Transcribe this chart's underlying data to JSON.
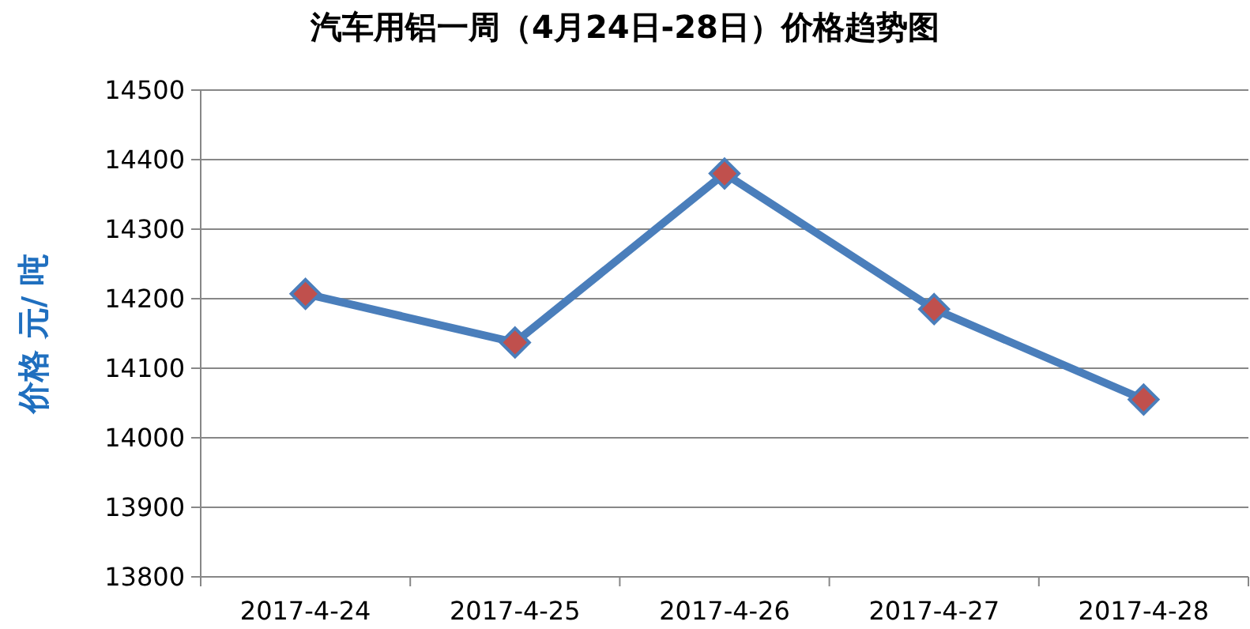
{
  "chart_data": {
    "type": "line",
    "title": "汽车用铝一周（4月24日-28日）价格趋势图",
    "ylabel": "价格 元/ 吨",
    "categories": [
      "2017-4-24",
      "2017-4-25",
      "2017-4-26",
      "2017-4-27",
      "2017-4-28"
    ],
    "series": [
      {
        "color": "#4a7ebb",
        "values": [
          14207,
          14137,
          14380,
          14185,
          14055
        ]
      }
    ],
    "marker": "diamond",
    "ylim": [
      13800,
      14500
    ],
    "yticks": [
      13800,
      13900,
      14000,
      14100,
      14200,
      14300,
      14400,
      14500
    ],
    "grid": "y"
  }
}
